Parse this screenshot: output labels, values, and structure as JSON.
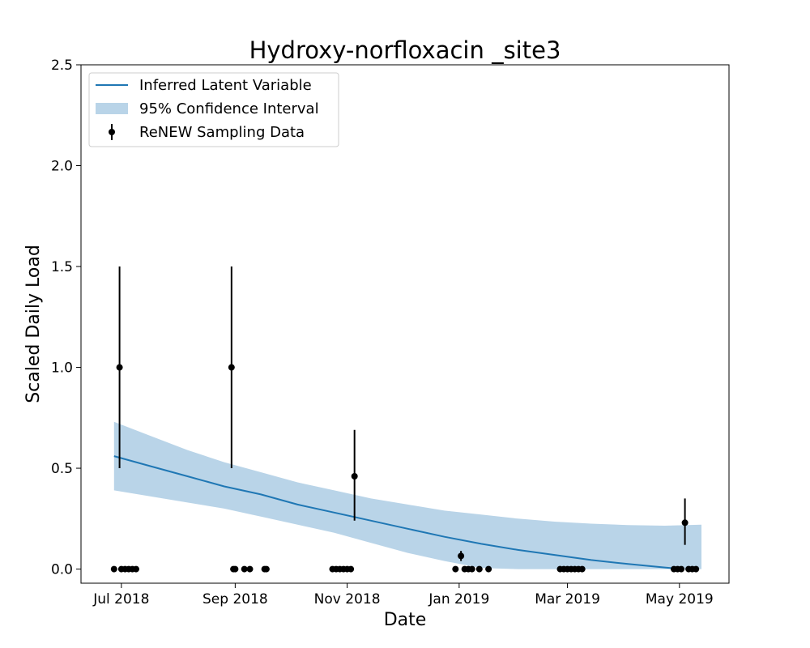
{
  "chart_data": {
    "type": "line",
    "title": "Hydroxy-norfloxacin _site3",
    "xlabel": "Date",
    "ylabel": "Scaled Daily Load",
    "ylim": [
      -0.07,
      2.5
    ],
    "xlim": [
      "2018-06-09",
      "2019-05-28"
    ],
    "grid": false,
    "legend_position": "top-left",
    "x_ticks": [
      {
        "date": "2018-07-01",
        "label": "Jul 2018"
      },
      {
        "date": "2018-09-01",
        "label": "Sep 2018"
      },
      {
        "date": "2018-11-01",
        "label": "Nov 2018"
      },
      {
        "date": "2019-01-01",
        "label": "Jan 2019"
      },
      {
        "date": "2019-03-01",
        "label": "Mar 2019"
      },
      {
        "date": "2019-05-01",
        "label": "May 2019"
      }
    ],
    "y_ticks": [
      {
        "value": 0.0,
        "label": "0.0"
      },
      {
        "value": 0.5,
        "label": "0.5"
      },
      {
        "value": 1.0,
        "label": "1.0"
      },
      {
        "value": 1.5,
        "label": "1.5"
      },
      {
        "value": 2.0,
        "label": "2.0"
      },
      {
        "value": 2.5,
        "label": "2.5"
      }
    ],
    "legend": [
      {
        "label": "Inferred Latent Variable",
        "kind": "line"
      },
      {
        "label": "95% Confidence Interval",
        "kind": "band"
      },
      {
        "label": "ReNEW Sampling Data",
        "kind": "errorbar"
      }
    ],
    "colors": {
      "latent": "#1f77b4",
      "band": "#b9d4e8",
      "points": "#000000"
    },
    "latent_line": {
      "x": [
        "2018-06-27",
        "2018-07-17",
        "2018-08-06",
        "2018-08-26",
        "2018-09-15",
        "2018-10-05",
        "2018-10-25",
        "2018-11-14",
        "2018-12-04",
        "2018-12-24",
        "2019-01-13",
        "2019-02-02",
        "2019-02-22",
        "2019-03-14",
        "2019-04-03",
        "2019-04-23",
        "2019-05-03"
      ],
      "y": [
        0.56,
        0.51,
        0.46,
        0.41,
        0.37,
        0.32,
        0.28,
        0.24,
        0.2,
        0.16,
        0.125,
        0.095,
        0.07,
        0.045,
        0.025,
        0.008,
        0.0
      ]
    },
    "confidence_band": {
      "x": [
        "2018-06-27",
        "2018-07-17",
        "2018-08-06",
        "2018-08-26",
        "2018-09-15",
        "2018-10-05",
        "2018-10-25",
        "2018-11-14",
        "2018-12-04",
        "2018-12-24",
        "2019-01-13",
        "2019-02-02",
        "2019-02-22",
        "2019-03-14",
        "2019-04-03",
        "2019-04-23",
        "2019-05-13"
      ],
      "upper": [
        0.73,
        0.66,
        0.59,
        0.53,
        0.48,
        0.43,
        0.39,
        0.35,
        0.32,
        0.29,
        0.27,
        0.25,
        0.235,
        0.225,
        0.218,
        0.215,
        0.22
      ],
      "lower": [
        0.39,
        0.36,
        0.33,
        0.3,
        0.26,
        0.22,
        0.18,
        0.13,
        0.08,
        0.04,
        0.005,
        0.0,
        0.0,
        0.0,
        0.0,
        0.0,
        0.0
      ]
    },
    "sampling_data": [
      {
        "x": "2018-06-27",
        "y": 0.0
      },
      {
        "x": "2018-06-30",
        "y": 1.0,
        "err_low": 0.5,
        "err_high": 1.5
      },
      {
        "x": "2018-07-01",
        "y": 0.0
      },
      {
        "x": "2018-07-03",
        "y": 0.0
      },
      {
        "x": "2018-07-05",
        "y": 0.0
      },
      {
        "x": "2018-07-07",
        "y": 0.0
      },
      {
        "x": "2018-07-09",
        "y": 0.0
      },
      {
        "x": "2018-08-30",
        "y": 1.0,
        "err_low": 0.5,
        "err_high": 1.5
      },
      {
        "x": "2018-08-31",
        "y": 0.0
      },
      {
        "x": "2018-09-01",
        "y": 0.0
      },
      {
        "x": "2018-09-06",
        "y": 0.0
      },
      {
        "x": "2018-09-09",
        "y": 0.0
      },
      {
        "x": "2018-09-17",
        "y": 0.0
      },
      {
        "x": "2018-09-18",
        "y": 0.0
      },
      {
        "x": "2018-10-24",
        "y": 0.0
      },
      {
        "x": "2018-10-26",
        "y": 0.0
      },
      {
        "x": "2018-10-28",
        "y": 0.0
      },
      {
        "x": "2018-10-30",
        "y": 0.0
      },
      {
        "x": "2018-11-01",
        "y": 0.0
      },
      {
        "x": "2018-11-03",
        "y": 0.0
      },
      {
        "x": "2018-11-05",
        "y": 0.46,
        "err_low": 0.24,
        "err_high": 0.69
      },
      {
        "x": "2018-12-30",
        "y": 0.0
      },
      {
        "x": "2019-01-02",
        "y": 0.065,
        "err_low": 0.04,
        "err_high": 0.09
      },
      {
        "x": "2019-01-04",
        "y": 0.0
      },
      {
        "x": "2019-01-06",
        "y": 0.0
      },
      {
        "x": "2019-01-08",
        "y": 0.0
      },
      {
        "x": "2019-01-12",
        "y": 0.0
      },
      {
        "x": "2019-01-17",
        "y": 0.0
      },
      {
        "x": "2019-02-25",
        "y": 0.0
      },
      {
        "x": "2019-02-27",
        "y": 0.0
      },
      {
        "x": "2019-03-01",
        "y": 0.0
      },
      {
        "x": "2019-03-03",
        "y": 0.0
      },
      {
        "x": "2019-03-05",
        "y": 0.0
      },
      {
        "x": "2019-03-07",
        "y": 0.0
      },
      {
        "x": "2019-03-09",
        "y": 0.0
      },
      {
        "x": "2019-04-28",
        "y": 0.0
      },
      {
        "x": "2019-04-30",
        "y": 0.0
      },
      {
        "x": "2019-05-02",
        "y": 0.0
      },
      {
        "x": "2019-05-04",
        "y": 0.23,
        "err_low": 0.12,
        "err_high": 0.35
      },
      {
        "x": "2019-05-06",
        "y": 0.0
      },
      {
        "x": "2019-05-08",
        "y": 0.0
      },
      {
        "x": "2019-05-10",
        "y": 0.0
      }
    ]
  }
}
